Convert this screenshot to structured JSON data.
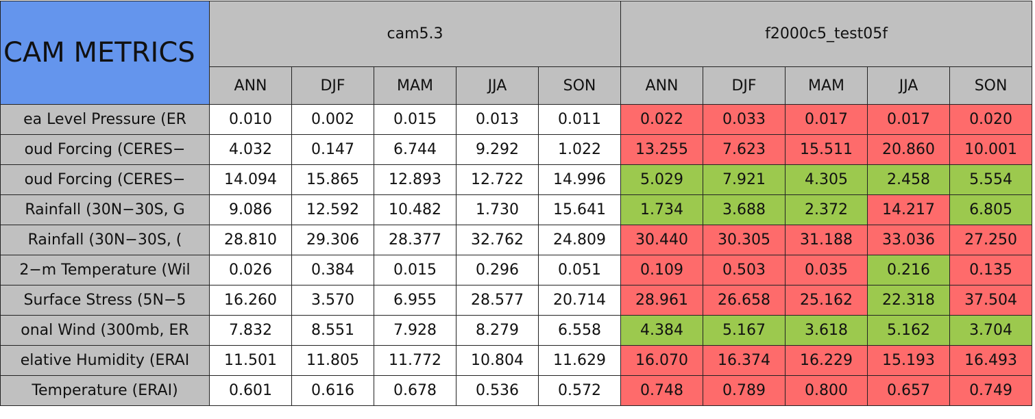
{
  "table": {
    "title": "CAM METRICS",
    "groups": [
      "cam5.3",
      "f2000c5_test05f"
    ],
    "seasons": [
      "ANN",
      "DJF",
      "MAM",
      "JJA",
      "SON",
      "ANN",
      "DJF",
      "MAM",
      "JJA",
      "SON"
    ],
    "rows": [
      {
        "label": "ea Level Pressure (ER",
        "values": [
          "0.010",
          "0.002",
          "0.015",
          "0.013",
          "0.011",
          "0.022",
          "0.033",
          "0.017",
          "0.017",
          "0.020"
        ],
        "colors": [
          "#ffffff",
          "#ffffff",
          "#ffffff",
          "#ffffff",
          "#ffffff",
          "#fe6b6b",
          "#fe6b6b",
          "#fe6b6b",
          "#fe6b6b",
          "#fe6b6b"
        ]
      },
      {
        "label": "oud Forcing (CERES−",
        "values": [
          "4.032",
          "0.147",
          "6.744",
          "9.292",
          "1.022",
          "13.255",
          "7.623",
          "15.511",
          "20.860",
          "10.001"
        ],
        "colors": [
          "#ffffff",
          "#ffffff",
          "#ffffff",
          "#ffffff",
          "#ffffff",
          "#fe6b6b",
          "#fe6b6b",
          "#fe6b6b",
          "#fe6b6b",
          "#fe6b6b"
        ]
      },
      {
        "label": "oud Forcing (CERES−",
        "values": [
          "14.094",
          "15.865",
          "12.893",
          "12.722",
          "14.996",
          "5.029",
          "7.921",
          "4.305",
          "2.458",
          "5.554"
        ],
        "colors": [
          "#ffffff",
          "#ffffff",
          "#ffffff",
          "#ffffff",
          "#ffffff",
          "#9cc94e",
          "#9cc94e",
          "#9cc94e",
          "#9cc94e",
          "#9cc94e"
        ]
      },
      {
        "label": "Rainfall (30N−30S, G",
        "values": [
          "9.086",
          "12.592",
          "10.482",
          "1.730",
          "15.641",
          "1.734",
          "3.688",
          "2.372",
          "14.217",
          "6.805"
        ],
        "colors": [
          "#ffffff",
          "#ffffff",
          "#ffffff",
          "#ffffff",
          "#ffffff",
          "#9cc94e",
          "#9cc94e",
          "#9cc94e",
          "#fe6b6b",
          "#9cc94e"
        ]
      },
      {
        "label": "Rainfall (30N−30S, (",
        "values": [
          "28.810",
          "29.306",
          "28.377",
          "32.762",
          "24.809",
          "30.440",
          "30.305",
          "31.188",
          "33.036",
          "27.250"
        ],
        "colors": [
          "#ffffff",
          "#ffffff",
          "#ffffff",
          "#ffffff",
          "#ffffff",
          "#fe6b6b",
          "#fe6b6b",
          "#fe6b6b",
          "#fe6b6b",
          "#fe6b6b"
        ]
      },
      {
        "label": "2−m Temperature (Wil",
        "values": [
          "0.026",
          "0.384",
          "0.015",
          "0.296",
          "0.051",
          "0.109",
          "0.503",
          "0.035",
          "0.216",
          "0.135"
        ],
        "colors": [
          "#ffffff",
          "#ffffff",
          "#ffffff",
          "#ffffff",
          "#ffffff",
          "#fe6b6b",
          "#fe6b6b",
          "#fe6b6b",
          "#9cc94e",
          "#fe6b6b"
        ]
      },
      {
        "label": "Surface Stress (5N−5",
        "values": [
          "16.260",
          "3.570",
          "6.955",
          "28.577",
          "20.714",
          "28.961",
          "26.658",
          "25.162",
          "22.318",
          "37.504"
        ],
        "colors": [
          "#ffffff",
          "#ffffff",
          "#ffffff",
          "#ffffff",
          "#ffffff",
          "#fe6b6b",
          "#fe6b6b",
          "#fe6b6b",
          "#9cc94e",
          "#fe6b6b"
        ]
      },
      {
        "label": "onal Wind (300mb, ER",
        "values": [
          "7.832",
          "8.551",
          "7.928",
          "8.279",
          "6.558",
          "4.384",
          "5.167",
          "3.618",
          "5.162",
          "3.704"
        ],
        "colors": [
          "#ffffff",
          "#ffffff",
          "#ffffff",
          "#ffffff",
          "#ffffff",
          "#9cc94e",
          "#9cc94e",
          "#9cc94e",
          "#9cc94e",
          "#9cc94e"
        ]
      },
      {
        "label": "elative Humidity (ERAI",
        "values": [
          "11.501",
          "11.805",
          "11.772",
          "10.804",
          "11.629",
          "16.070",
          "16.374",
          "16.229",
          "15.193",
          "16.493"
        ],
        "colors": [
          "#ffffff",
          "#ffffff",
          "#ffffff",
          "#ffffff",
          "#ffffff",
          "#fe6b6b",
          "#fe6b6b",
          "#fe6b6b",
          "#fe6b6b",
          "#fe6b6b"
        ]
      },
      {
        "label": "Temperature (ERAI)",
        "values": [
          "0.601",
          "0.616",
          "0.678",
          "0.536",
          "0.572",
          "0.748",
          "0.789",
          "0.800",
          "0.657",
          "0.749"
        ],
        "colors": [
          "#ffffff",
          "#ffffff",
          "#ffffff",
          "#ffffff",
          "#ffffff",
          "#fe6b6b",
          "#fe6b6b",
          "#fe6b6b",
          "#fe6b6b",
          "#fe6b6b"
        ]
      }
    ]
  }
}
